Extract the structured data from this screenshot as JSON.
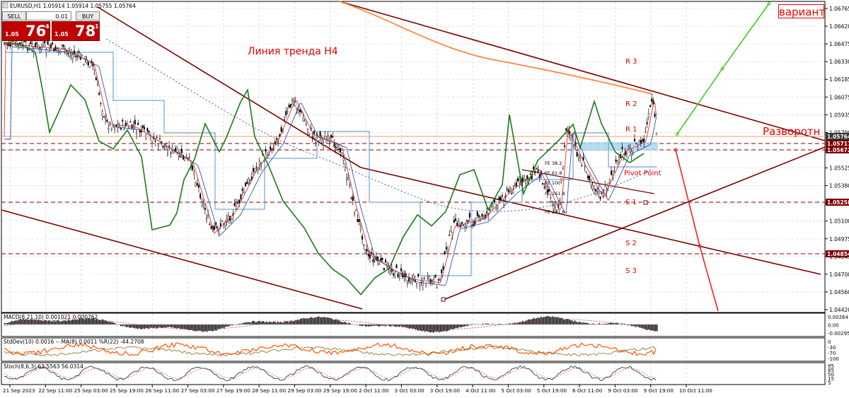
{
  "header": {
    "symbol_info": "EURUSD,H1  1.05914 1.05914 1.05755 1.05764"
  },
  "trade_panel": {
    "sell_label": "SELL",
    "buy_label": "BUY",
    "lot_value": "0.01",
    "sell_price_small": "1.05",
    "sell_price_big": "76",
    "sell_price_sup": "4",
    "buy_price_small": "1.05",
    "buy_price_big": "78",
    "buy_price_sup": "1"
  },
  "annotations": {
    "trendline_h4": "Линия тренда H4",
    "variant": "вариант",
    "reversal": "Разворотн",
    "pivot_point": "Pivot Point",
    "r1": "R 1",
    "r2": "R 2",
    "r3": "R 3",
    "s1": "S 1",
    "s2": "S 2",
    "s3": "S 3",
    "fe_labels": [
      "FE 38.2",
      "FE 61.8",
      "FE 100",
      "FE 161.8",
      "FE 261.8"
    ]
  },
  "price_axis": {
    "ticks": [
      "1.06765",
      "1.06620",
      "1.06475",
      "1.06330",
      "1.06185",
      "1.06075",
      "1.05935",
      "1.05790",
      "1.05645",
      "1.05525",
      "1.05380",
      "1.05235",
      "1.05100",
      "1.04975",
      "1.04845",
      "1.04700",
      "1.04560",
      "1.04420"
    ],
    "badges": [
      {
        "text": "1.05764",
        "color": "#333333"
      },
      {
        "text": "1.05717",
        "color": "#7a0000"
      },
      {
        "text": "1.05672",
        "color": "#7a0000"
      },
      {
        "text": "1.05258",
        "color": "#7a0000"
      },
      {
        "text": "1.04854",
        "color": "#7a0000"
      }
    ]
  },
  "time_axis": {
    "ticks": [
      "21 Sep 2023",
      "22 Sep 11:00",
      "25 Sep 03:00",
      "25 Sep 19:00",
      "26 Sep 11:00",
      "27 Sep 03:00",
      "27 Sep 19:00",
      "28 Sep 11:00",
      "29 Sep 03:00",
      "29 Sep 19:00",
      "2 Oct 11:00",
      "3 Oct 03:00",
      "3 Oct 19:00",
      "4 Oct 11:00",
      "5 Oct 03:00",
      "5 Oct 19:00",
      "6 Oct 11:00",
      "9 Oct 03:00",
      "9 Oct 19:00",
      "10 Oct 11:00"
    ]
  },
  "macd": {
    "label": "MACD(8,21,10) 0.001021 0.000762",
    "ticks": [
      "0.00264",
      "0.00",
      "-0.00295"
    ]
  },
  "stddev": {
    "label": "StdDev(10) 0.0016 -- MA(8) 0.0011  %R(22) -44.2708",
    "ticks": [
      "0",
      "-30",
      "-70",
      "-100"
    ]
  },
  "stoch": {
    "label": "Stoch(8,6,3) 63.5563 56.0314",
    "ticks": [
      "95",
      "85",
      "50",
      "15",
      "5"
    ]
  },
  "colors": {
    "candle": "#000000",
    "trendline": "#7a0000",
    "green_line": "#1a7a1a",
    "forecast_up": "#44cc22",
    "forecast_down": "#ee2222",
    "ma_orange": "#ff8844",
    "grid": "#bbbbbb",
    "level_dashed": "#8b0000",
    "panel_red": "#c00000"
  }
}
